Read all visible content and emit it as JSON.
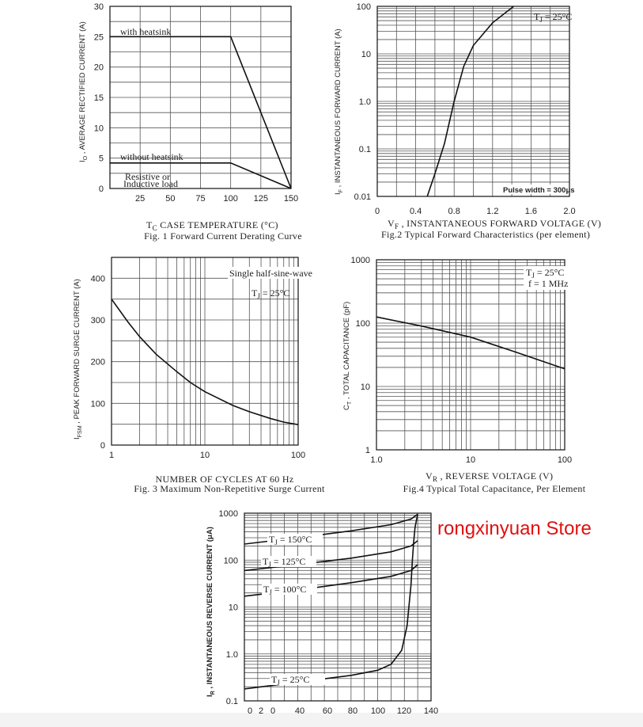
{
  "store_label": "rongxinyuan Store",
  "chart_data": [
    {
      "id": "fig1",
      "type": "line",
      "caption": "Fig. 1 Forward Current Derating Curve",
      "xlabel": "CASE TEMPERATURE (°C)",
      "xlabel_symbol": "T",
      "xlabel_sub": "C",
      "ylabel": "I  , AVERAGE RECTIFIED CURRENT (A)",
      "ylabel_sub": "O",
      "xlim": [
        0,
        150
      ],
      "ylim": [
        0,
        30
      ],
      "xticks": [
        25,
        50,
        75,
        100,
        125,
        150
      ],
      "yticks": [
        0,
        5,
        10,
        15,
        20,
        25,
        30
      ],
      "grid": true,
      "series": [
        {
          "name": "with heatsink",
          "x": [
            0,
            100,
            150
          ],
          "y": [
            25,
            25,
            0
          ]
        },
        {
          "name": "without heatsink",
          "x": [
            0,
            100,
            150
          ],
          "y": [
            4.2,
            4.2,
            0
          ]
        }
      ],
      "annotations": [
        "Resistive or",
        "Inductive load"
      ]
    },
    {
      "id": "fig2",
      "type": "line",
      "caption": "Fig.2 Typical Forward Characteristics (per element)",
      "xlabel": "V  , INSTANTANEOUS FORWARD VOLTAGE (V)",
      "xlabel_sub": "F",
      "ylabel": "I  , INSTANTANEOUS FORWARD CURRENT (A)",
      "ylabel_sub": "F",
      "xscale": "linear",
      "yscale": "log",
      "xlim": [
        0,
        2.0
      ],
      "ylim": [
        0.01,
        100
      ],
      "xticks": [
        "0",
        "0.4",
        "0.8",
        "1.2",
        "1.6",
        "2.0"
      ],
      "yticks": [
        "0.01",
        "0.1",
        "1.0",
        "10",
        "100"
      ],
      "grid": true,
      "series": [
        {
          "x": [
            0.52,
            0.6,
            0.7,
            0.8,
            0.9,
            1.0,
            1.2,
            1.42
          ],
          "y": [
            0.01,
            0.03,
            0.13,
            1.0,
            5.5,
            15,
            45,
            100
          ]
        }
      ],
      "annotations": [
        "T  = 25°C",
        "Pulse width = 300μs"
      ],
      "annotation_subs": [
        "J"
      ]
    },
    {
      "id": "fig3",
      "type": "line",
      "caption": "Fig. 3 Maximum Non-Repetitive Surge Current",
      "xlabel": "NUMBER OF CYCLES AT 60 Hz",
      "ylabel": "I    , PEAK FORWARD SURGE CURRENT (A)",
      "ylabel_sub": "FSM",
      "xscale": "log",
      "yscale": "linear",
      "xlim": [
        1,
        100
      ],
      "ylim": [
        0,
        450
      ],
      "xticks": [
        "1",
        "10",
        "100"
      ],
      "yticks": [
        0,
        100,
        200,
        300,
        400
      ],
      "grid": true,
      "series": [
        {
          "x": [
            1,
            1.5,
            2,
            3,
            5,
            7,
            10,
            20,
            30,
            50,
            70,
            100
          ],
          "y": [
            350,
            295,
            260,
            218,
            176,
            150,
            128,
            95,
            80,
            64,
            55,
            49
          ]
        }
      ],
      "annotations": [
        "Single half-sine-wave",
        "T  = 25°C"
      ],
      "annotation_subs": [
        "J"
      ]
    },
    {
      "id": "fig4",
      "type": "line",
      "caption": "Fig.4 Typical Total Capacitance, Per Element",
      "xlabel": "V  , REVERSE VOLTAGE (V)",
      "xlabel_sub": "R",
      "ylabel": "C  , TOTAL CAPACITANCE (pF)",
      "ylabel_sub": "T",
      "xscale": "log",
      "yscale": "log",
      "xlim": [
        1.0,
        100
      ],
      "ylim": [
        1,
        1000
      ],
      "xticks": [
        "1.0",
        "10",
        "100"
      ],
      "yticks": [
        "1",
        "10",
        "100",
        "1000"
      ],
      "grid": true,
      "series": [
        {
          "x": [
            1.0,
            3,
            10,
            30,
            100
          ],
          "y": [
            125,
            90,
            60,
            35,
            19
          ]
        }
      ],
      "annotations": [
        "T  = 25°C",
        "f = 1 MHz"
      ],
      "annotation_subs": [
        "J"
      ]
    },
    {
      "id": "fig5",
      "type": "line",
      "caption": "",
      "xlabel": "",
      "ylabel": "I  , INSTANTANEOUS REVERSE CURRENT (μA)",
      "ylabel_sub": "R",
      "xscale": "linear",
      "yscale": "log",
      "xlim": [
        0,
        140
      ],
      "ylim": [
        0.1,
        1000
      ],
      "xticks": [
        "0",
        "2",
        "0",
        "40",
        "60",
        "80",
        "100",
        "120",
        "140"
      ],
      "yticks": [
        "0.1",
        "1.0",
        "10",
        "100",
        "1000"
      ],
      "grid": true,
      "series": [
        {
          "name": "T  = 150°C",
          "x": [
            0,
            40,
            80,
            110,
            125,
            130
          ],
          "y": [
            220,
            300,
            420,
            570,
            750,
            950
          ]
        },
        {
          "name": "T  = 125°C",
          "x": [
            0,
            40,
            80,
            110,
            125,
            130
          ],
          "y": [
            60,
            80,
            110,
            150,
            200,
            260
          ]
        },
        {
          "name": "T  = 100°C",
          "x": [
            0,
            40,
            80,
            110,
            125,
            130
          ],
          "y": [
            17,
            23,
            33,
            45,
            60,
            80
          ]
        },
        {
          "name": "T  = 25°C",
          "x": [
            0,
            40,
            80,
            100,
            110,
            118,
            122,
            125,
            126,
            127,
            128,
            130
          ],
          "y": [
            0.18,
            0.25,
            0.35,
            0.45,
            0.6,
            1.2,
            4,
            30,
            100,
            250,
            500,
            950
          ]
        }
      ],
      "series_subs": [
        "J"
      ]
    }
  ]
}
